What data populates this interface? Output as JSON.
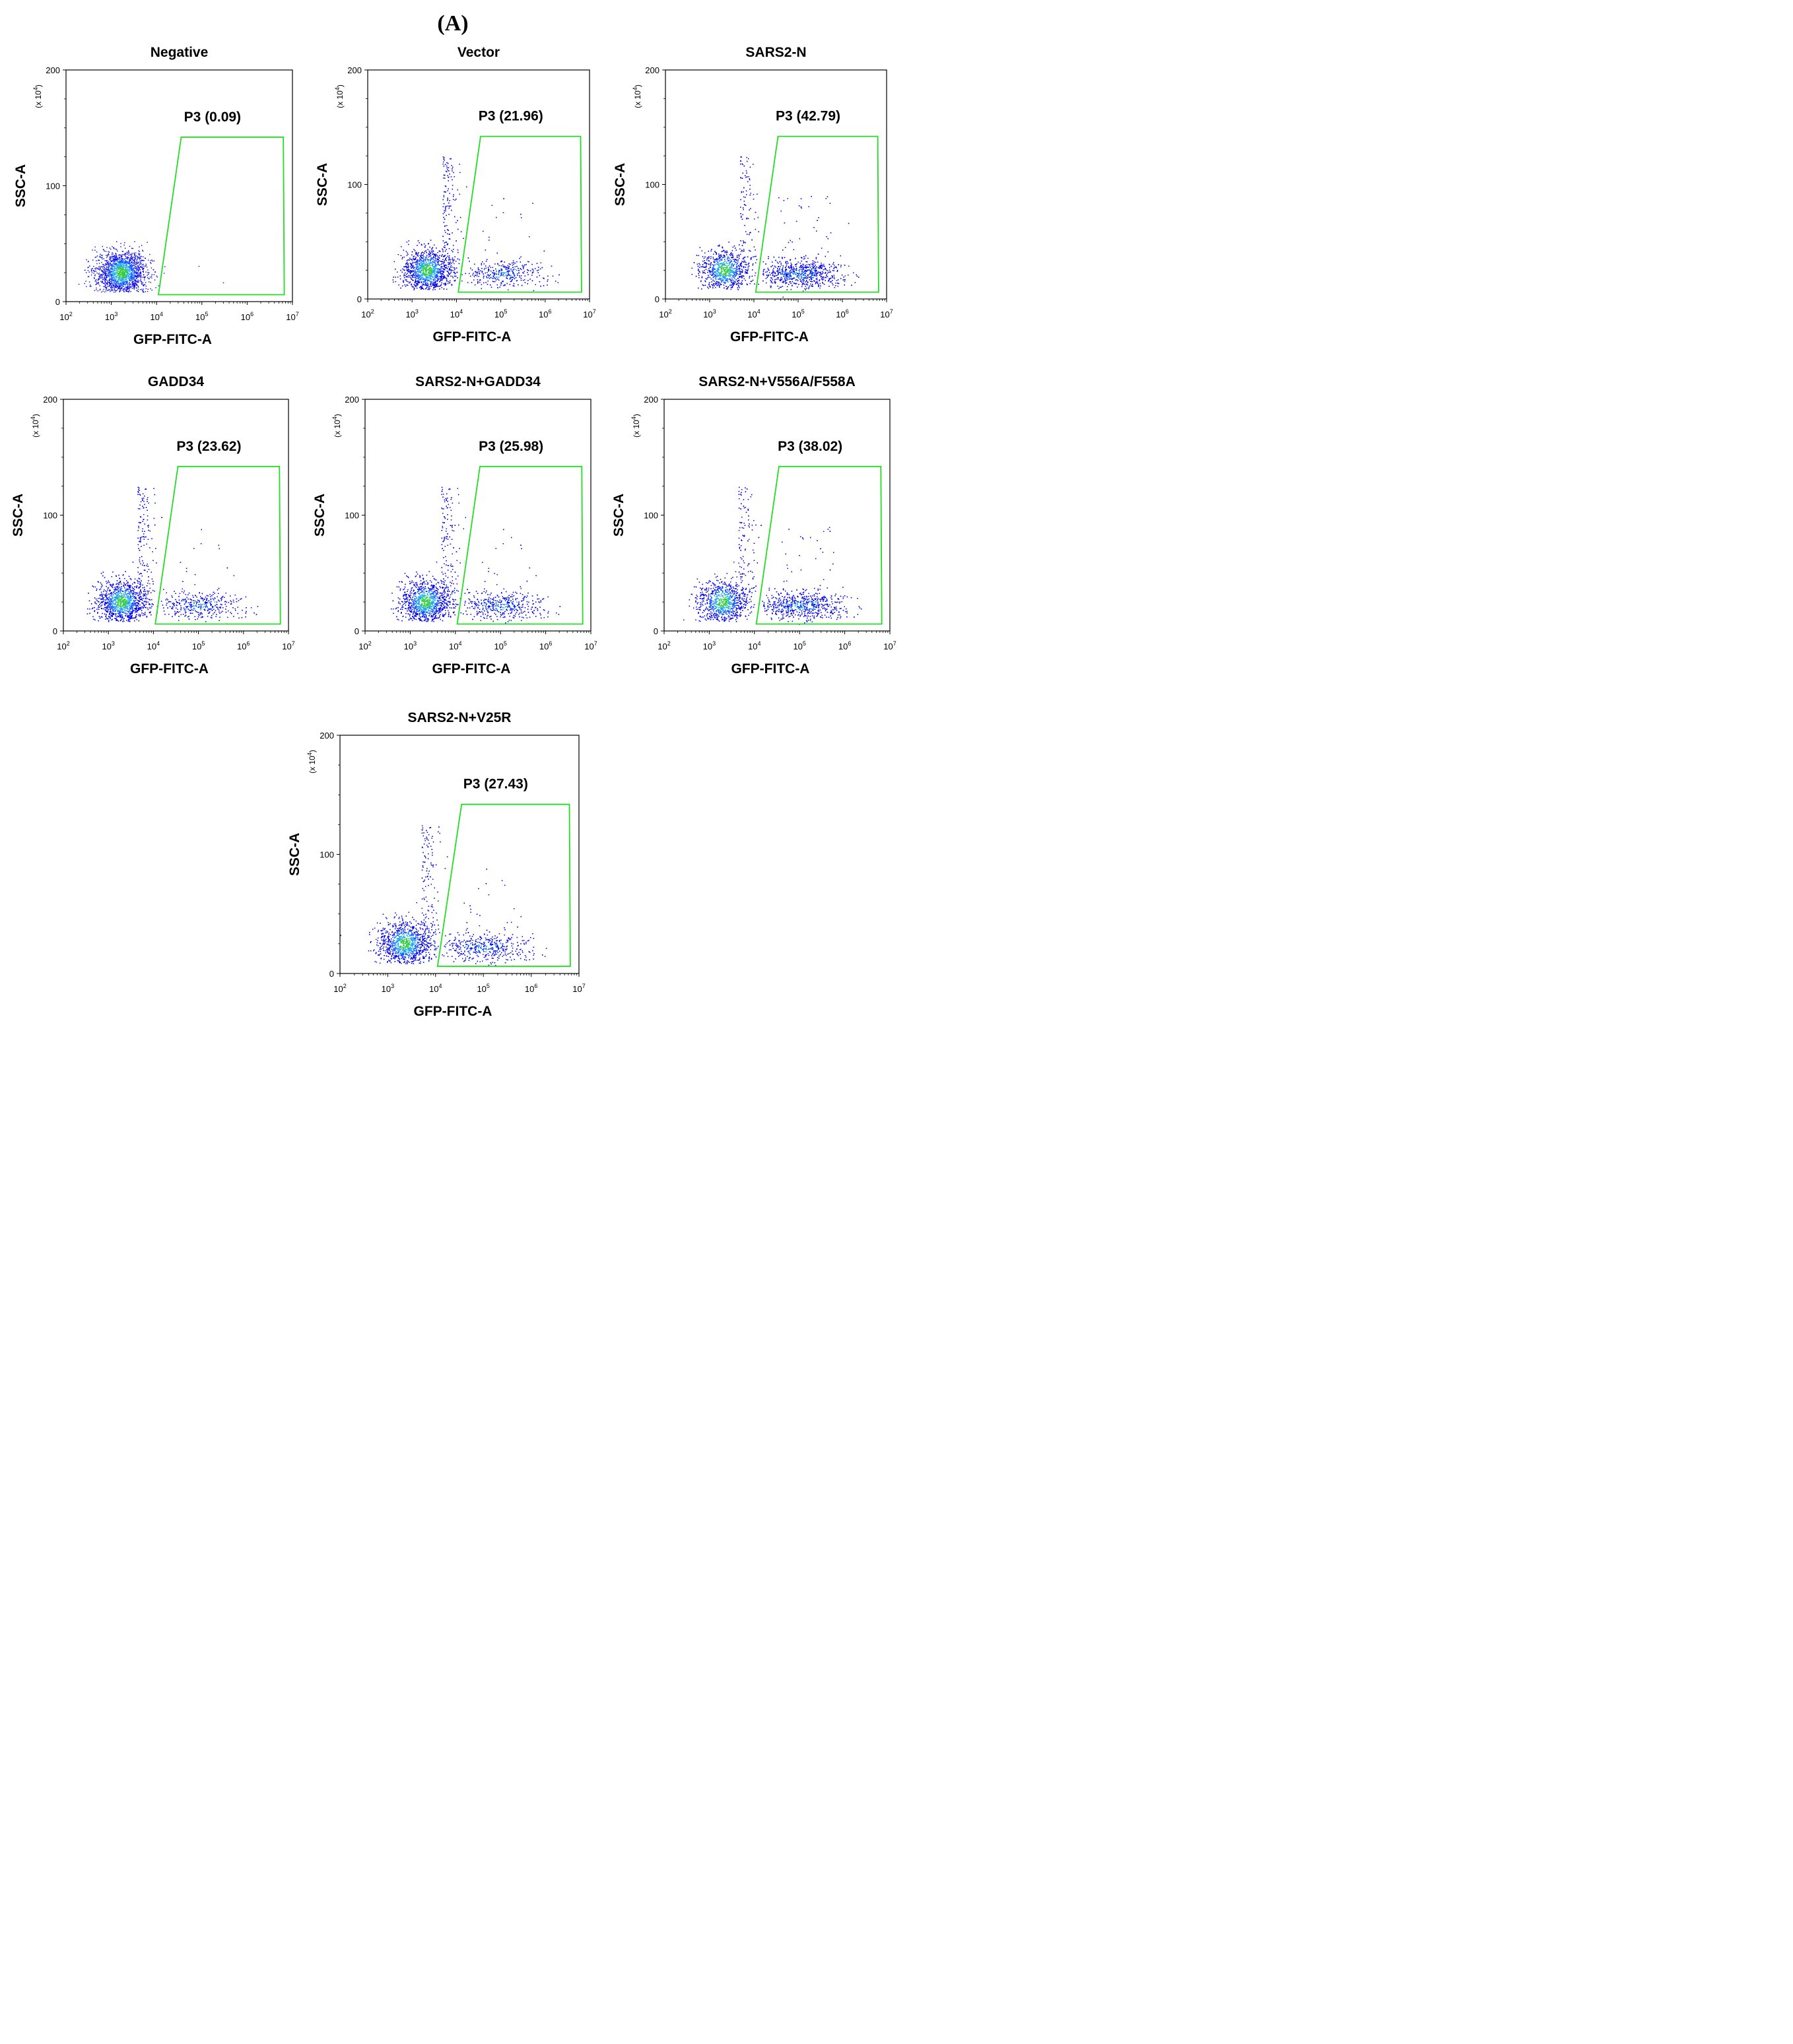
{
  "panel_label": "(A)",
  "colors": {
    "gate": "#22dd22",
    "axis": "#000000",
    "density_low": "#0000ee",
    "density_high": "#22cc55"
  },
  "chart_data": [
    {
      "type": "scatter",
      "title": "Negative",
      "xlabel": "GFP-FITC-A",
      "ylabel": "SSC-A",
      "y_multiplier": "(x 10^4)",
      "x_scale": "log",
      "xlim": [
        100,
        10000000
      ],
      "ylim": [
        0,
        200
      ],
      "x_ticks": [
        "10^2",
        "10^3",
        "10^4",
        "10^5",
        "10^6",
        "10^7"
      ],
      "y_ticks": [
        "0",
        "100",
        "200"
      ],
      "gate": {
        "name": "P3",
        "percent": "0.09",
        "label": "P3 (0.09)",
        "polygon": [
          [
            11000,
            6
          ],
          [
            35000,
            142
          ],
          [
            6300000,
            142
          ],
          [
            6600000,
            6
          ]
        ]
      },
      "population": {
        "x_center": 1700,
        "y_center": 25,
        "events": 1800,
        "in_gate_fraction": 0.0009
      }
    },
    {
      "type": "scatter",
      "title": "Vector",
      "xlabel": "GFP-FITC-A",
      "ylabel": "SSC-A",
      "y_multiplier": "(x 10^4)",
      "x_scale": "log",
      "xlim": [
        100,
        10000000
      ],
      "ylim": [
        0,
        200
      ],
      "x_ticks": [
        "10^2",
        "10^3",
        "10^4",
        "10^5",
        "10^6",
        "10^7"
      ],
      "y_ticks": [
        "0",
        "100",
        "200"
      ],
      "gate": {
        "name": "P3",
        "percent": "21.96",
        "label": "P3 (21.96)",
        "polygon": [
          [
            11000,
            6
          ],
          [
            35000,
            142
          ],
          [
            6300000,
            142
          ],
          [
            6600000,
            6
          ]
        ]
      },
      "population": {
        "x_center": 2200,
        "y_center": 25,
        "events": 3600,
        "in_gate_fraction": 0.2196
      }
    },
    {
      "type": "scatter",
      "title": "SARS2-N",
      "xlabel": "GFP-FITC-A",
      "ylabel": "SSC-A",
      "y_multiplier": "(x 10^4)",
      "x_scale": "log",
      "xlim": [
        100,
        10000000
      ],
      "ylim": [
        0,
        200
      ],
      "x_ticks": [
        "10^2",
        "10^3",
        "10^4",
        "10^5",
        "10^6",
        "10^7"
      ],
      "y_ticks": [
        "0",
        "100",
        "200"
      ],
      "gate": {
        "name": "P3",
        "percent": "42.79",
        "label": "P3 (42.79)",
        "polygon": [
          [
            11000,
            6
          ],
          [
            35000,
            142
          ],
          [
            6300000,
            142
          ],
          [
            6600000,
            6
          ]
        ]
      },
      "population": {
        "x_center": 2200,
        "y_center": 25,
        "events": 3800,
        "in_gate_fraction": 0.4279
      }
    },
    {
      "type": "scatter",
      "title": "GADD34",
      "xlabel": "GFP-FITC-A",
      "ylabel": "SSC-A",
      "y_multiplier": "(x 10^4)",
      "x_scale": "log",
      "xlim": [
        100,
        10000000
      ],
      "ylim": [
        0,
        200
      ],
      "x_ticks": [
        "10^2",
        "10^3",
        "10^4",
        "10^5",
        "10^6",
        "10^7"
      ],
      "y_ticks": [
        "0",
        "100",
        "200"
      ],
      "gate": {
        "name": "P3",
        "percent": "23.62",
        "label": "P3 (23.62)",
        "polygon": [
          [
            11000,
            6
          ],
          [
            35000,
            142
          ],
          [
            6300000,
            142
          ],
          [
            6600000,
            6
          ]
        ]
      },
      "population": {
        "x_center": 2000,
        "y_center": 25,
        "events": 3600,
        "in_gate_fraction": 0.2362
      }
    },
    {
      "type": "scatter",
      "title": "SARS2-N+GADD34",
      "xlabel": "GFP-FITC-A",
      "ylabel": "SSC-A",
      "y_multiplier": "(x 10^4)",
      "x_scale": "log",
      "xlim": [
        100,
        10000000
      ],
      "ylim": [
        0,
        200
      ],
      "x_ticks": [
        "10^2",
        "10^3",
        "10^4",
        "10^5",
        "10^6",
        "10^7"
      ],
      "y_ticks": [
        "0",
        "100",
        "200"
      ],
      "gate": {
        "name": "P3",
        "percent": "25.98",
        "label": "P3 (25.98)",
        "polygon": [
          [
            11000,
            6
          ],
          [
            35000,
            142
          ],
          [
            6300000,
            142
          ],
          [
            6600000,
            6
          ]
        ]
      },
      "population": {
        "x_center": 2200,
        "y_center": 25,
        "events": 3600,
        "in_gate_fraction": 0.2598
      }
    },
    {
      "type": "scatter",
      "title": "SARS2-N+V556A/F558A",
      "xlabel": "GFP-FITC-A",
      "ylabel": "SSC-A",
      "y_multiplier": "(x 10^4)",
      "x_scale": "log",
      "xlim": [
        100,
        10000000
      ],
      "ylim": [
        0,
        200
      ],
      "x_ticks": [
        "10^2",
        "10^3",
        "10^4",
        "10^5",
        "10^6",
        "10^7"
      ],
      "y_ticks": [
        "0",
        "100",
        "200"
      ],
      "gate": {
        "name": "P3",
        "percent": "38.02",
        "label": "P3 (38.02)",
        "polygon": [
          [
            11000,
            6
          ],
          [
            35000,
            142
          ],
          [
            6300000,
            142
          ],
          [
            6600000,
            6
          ]
        ]
      },
      "population": {
        "x_center": 2000,
        "y_center": 25,
        "events": 3600,
        "in_gate_fraction": 0.3802
      }
    },
    {
      "type": "scatter",
      "title": "SARS2-N+V25R",
      "xlabel": "GFP-FITC-A",
      "ylabel": "SSC-A",
      "y_multiplier": "(x 10^4)",
      "x_scale": "log",
      "xlim": [
        100,
        10000000
      ],
      "ylim": [
        0,
        200
      ],
      "x_ticks": [
        "10^2",
        "10^3",
        "10^4",
        "10^5",
        "10^6",
        "10^7"
      ],
      "y_ticks": [
        "0",
        "100",
        "200"
      ],
      "gate": {
        "name": "P3",
        "percent": "27.43",
        "label": "P3 (27.43)",
        "polygon": [
          [
            11000,
            6
          ],
          [
            35000,
            142
          ],
          [
            6300000,
            142
          ],
          [
            6600000,
            6
          ]
        ]
      },
      "population": {
        "x_center": 2300,
        "y_center": 25,
        "events": 3600,
        "in_gate_fraction": 0.2743
      }
    }
  ]
}
